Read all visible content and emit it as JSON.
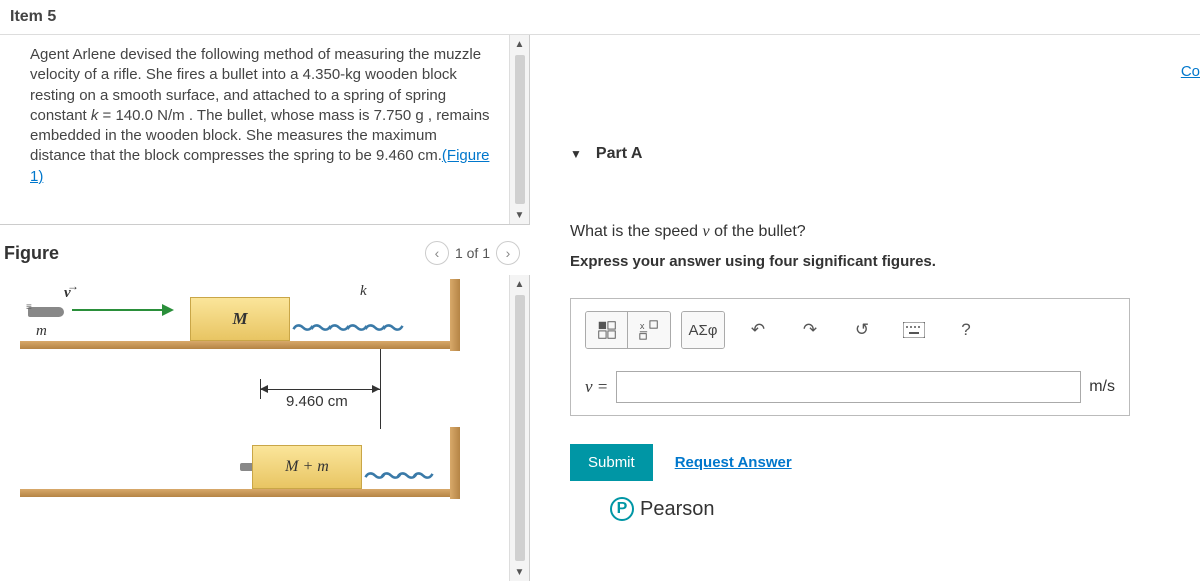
{
  "item_title": "Item 5",
  "problem": {
    "text_html": "Agent Arlene devised the following method of measuring the muzzle velocity of a rifle. She fires a bullet into a 4.350-kg wooden block resting on a smooth surface, and attached to a spring of spring constant <i>k</i> = 140.0 N/m . The bullet, whose mass is 7.750 g , remains embedded in the wooden block. She measures the maximum distance that the block compresses the spring to be 9.460 cm.",
    "figure_link": "(Figure 1)"
  },
  "figure": {
    "title": "Figure",
    "pager": "1 of 1",
    "labels": {
      "v": "v",
      "m": "m",
      "M": "M",
      "k": "k",
      "dim": "9.460 cm",
      "Mm": "M + m"
    }
  },
  "right": {
    "corner": "Co",
    "part_label": "Part A",
    "question_html": "What is the speed <i>v</i> of the bullet?",
    "instruction": "Express your answer using four significant figures.",
    "toolbar": {
      "greek": "ΑΣφ",
      "help": "?"
    },
    "answer": {
      "variable": "v =",
      "value": "",
      "unit": "m/s"
    },
    "submit": "Submit",
    "request": "Request Answer",
    "brand": "Pearson"
  }
}
